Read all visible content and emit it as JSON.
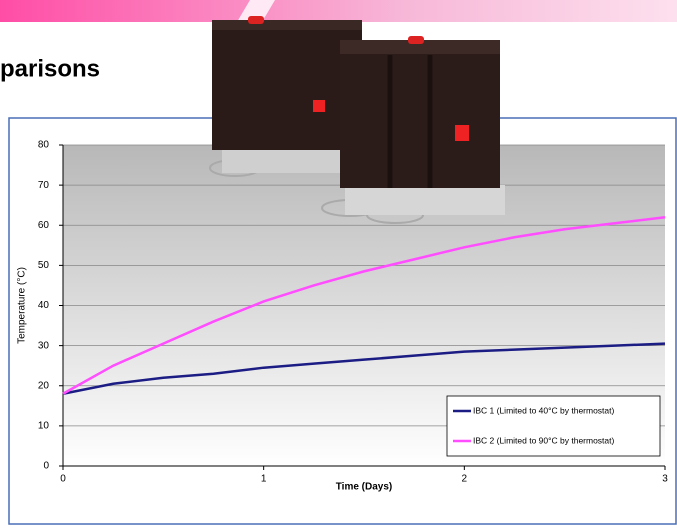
{
  "slide": {
    "title": "parisons"
  },
  "chart_data": {
    "type": "line",
    "x_label": "Time (Days)",
    "y_label": "Temperature (°C)",
    "x": [
      0,
      0.25,
      0.5,
      0.75,
      1,
      1.25,
      1.5,
      1.75,
      2,
      2.25,
      2.5,
      2.75,
      3
    ],
    "series": [
      {
        "name": "IBC 1 (Limited to 40°C by thermostat)",
        "color": "#1c1c85",
        "values": [
          18,
          20.5,
          22,
          23,
          24.5,
          25.5,
          26.5,
          27.5,
          28.5,
          29,
          29.5,
          30,
          30.5
        ]
      },
      {
        "name": "IBC 2 (Limited to 90°C by thermostat)",
        "color": "#ff4dff",
        "values": [
          18,
          25,
          30.5,
          36,
          41,
          45,
          48.5,
          51.5,
          54.5,
          57,
          59,
          60.5,
          62
        ]
      }
    ],
    "xlim": [
      0,
      3
    ],
    "xticks": [
      0,
      1,
      2,
      3
    ],
    "ylim": [
      0,
      80
    ],
    "yticks": [
      0,
      10,
      20,
      30,
      40,
      50,
      60,
      70,
      80
    ],
    "grid": true,
    "legend": "lower right"
  }
}
